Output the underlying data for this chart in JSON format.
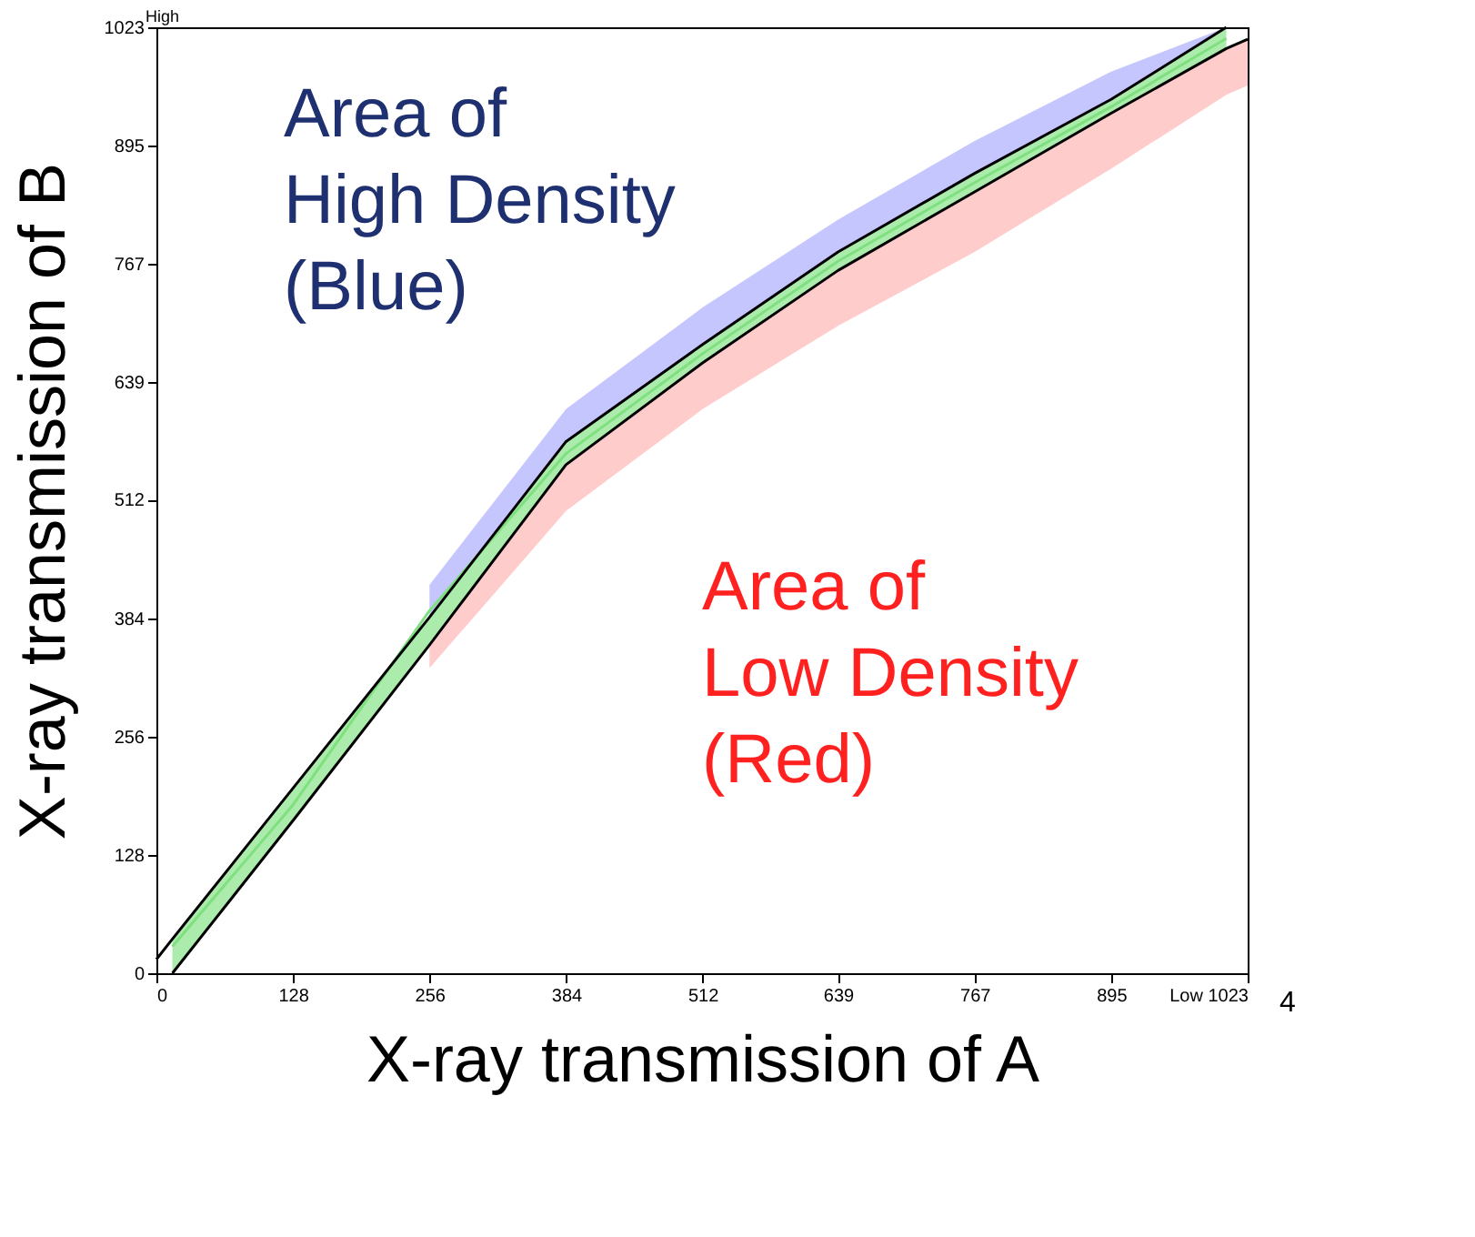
{
  "chart_data": {
    "type": "line",
    "xlabel": "X-ray transmission of A",
    "ylabel": "X-ray transmission of B",
    "x": [
      0,
      15,
      128,
      256,
      384,
      512,
      639,
      767,
      895,
      1003,
      1023
    ],
    "series": [
      {
        "color": "#7ee07e",
        "values": [
          null,
          29,
          182,
          392,
          562,
          670,
          770,
          855,
          937,
          1011,
          null
        ],
        "lower": [
          null,
          0,
          165,
          355,
          550,
          660,
          760,
          845,
          930,
          1000,
          null
        ],
        "upper": [
          null,
          37,
          200,
          385,
          575,
          680,
          780,
          865,
          945,
          1023,
          null
        ]
      },
      {
        "color": "#a8a8ff",
        "values": [
          null,
          null,
          null,
          null,
          null,
          null,
          null,
          null,
          null,
          null,
          null
        ],
        "lower": [
          null,
          null,
          null,
          385,
          575,
          680,
          780,
          865,
          945,
          1023,
          null
        ],
        "upper": [
          null,
          null,
          null,
          420,
          610,
          720,
          815,
          900,
          975,
          1023,
          null
        ]
      },
      {
        "color": "#ffb0b0",
        "values": [
          null,
          null,
          null,
          null,
          null,
          null,
          null,
          null,
          null,
          null,
          null
        ],
        "lower": [
          null,
          null,
          null,
          330,
          500,
          610,
          700,
          780,
          870,
          950,
          960
        ],
        "upper": [
          null,
          null,
          null,
          355,
          550,
          660,
          760,
          845,
          930,
          1000,
          1010
        ]
      },
      {
        "color": "#000000",
        "values": [
          15,
          37,
          200,
          385,
          575,
          680,
          780,
          865,
          945,
          1023,
          null
        ]
      },
      {
        "color": "#000000",
        "values": [
          null,
          0,
          165,
          355,
          550,
          660,
          760,
          845,
          930,
          1000,
          1010
        ]
      }
    ],
    "xlim": [
      0,
      1023
    ],
    "ylim": [
      0,
      1023
    ],
    "xticks": [
      0,
      128,
      256,
      384,
      512,
      639,
      767,
      895,
      {
        "value": 1023,
        "label": "Low 1023"
      }
    ],
    "yticks": [
      0,
      128,
      256,
      384,
      512,
      639,
      767,
      895,
      1023
    ],
    "grid": false,
    "line_style": "solid",
    "marker": "none",
    "annotations": [
      "Area of\nHigh Density\n(Blue)",
      "Area of\nLow Density\n(Red)",
      "High",
      "4"
    ]
  }
}
